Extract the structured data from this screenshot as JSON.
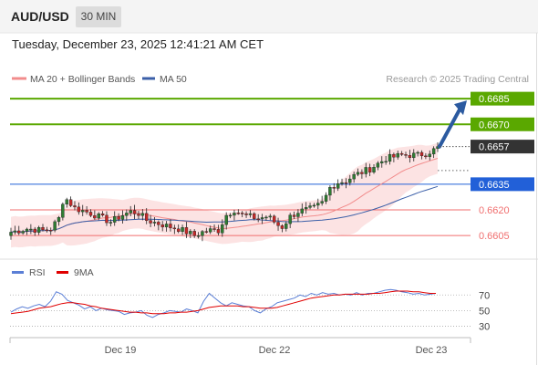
{
  "header": {
    "symbol": "AUD/USD",
    "timeframe_label": "30 MIN",
    "datetime": "Tuesday, December 23, 2025 12:41:21 AM CET"
  },
  "legend": {
    "ma20_label": "MA 20 + Bollinger Bands",
    "ma50_label": "MA 50",
    "source": "Research © 2025 Trading Central"
  },
  "colors": {
    "green_level": "#5aa800",
    "blue_level": "#2260d8",
    "red_level": "#f06e6e",
    "price_tag": "#333333",
    "candle_up": "#2e7d32",
    "candle_down": "#c62828",
    "band_fill": "#fbd9d9",
    "ma20": "#f28c8c",
    "ma50": "#3b5fa8",
    "rsi": "#5b7fd6",
    "rsi_ma": "#e00000",
    "arrow": "#2b5aa0"
  },
  "chart_data": [
    {
      "type": "candlestick",
      "title": "",
      "x_labels": [
        "Dec 19",
        "Dec 22",
        "Dec 23"
      ],
      "current_price": "0.6657",
      "levels": [
        {
          "value": "0.6685",
          "style": "green line, green tag"
        },
        {
          "value": "0.6670",
          "style": "green line, green tag"
        },
        {
          "value": "0.6635",
          "style": "blue line, blue tag"
        },
        {
          "value": "0.6620",
          "style": "red line, red text"
        },
        {
          "value": "0.6605",
          "style": "red line, red text"
        }
      ],
      "ylim": [
        0.6596,
        0.6692
      ],
      "series": [
        {
          "name": "MA 20 + Bollinger Bands"
        },
        {
          "name": "MA 50"
        }
      ],
      "close_path": [
        [
          0,
          0.6607
        ],
        [
          4,
          0.6609
        ],
        [
          8,
          0.6608
        ],
        [
          10,
          0.6609
        ],
        [
          12,
          0.6615
        ],
        [
          13,
          0.6625
        ],
        [
          14,
          0.6626
        ],
        [
          16,
          0.6621
        ],
        [
          20,
          0.6618
        ],
        [
          22,
          0.6616
        ],
        [
          25,
          0.6613
        ],
        [
          28,
          0.6617
        ],
        [
          30,
          0.6619
        ],
        [
          32,
          0.6618
        ],
        [
          34,
          0.6614
        ],
        [
          37,
          0.6612
        ],
        [
          40,
          0.661
        ],
        [
          42,
          0.6609
        ],
        [
          44,
          0.6607
        ],
        [
          46,
          0.6605
        ],
        [
          48,
          0.6607
        ],
        [
          50,
          0.6608
        ],
        [
          52,
          0.6608
        ],
        [
          54,
          0.6617
        ],
        [
          56,
          0.662
        ],
        [
          58,
          0.6617
        ],
        [
          60,
          0.6616
        ],
        [
          62,
          0.6615
        ],
        [
          64,
          0.6616
        ],
        [
          65,
          0.6615
        ],
        [
          66,
          0.6613
        ],
        [
          67,
          0.6611
        ],
        [
          68,
          0.661
        ],
        [
          69,
          0.6613
        ],
        [
          70,
          0.6616
        ],
        [
          72,
          0.6619
        ],
        [
          74,
          0.662
        ],
        [
          76,
          0.6621
        ],
        [
          78,
          0.6624
        ],
        [
          79,
          0.6628
        ],
        [
          80,
          0.6633
        ],
        [
          82,
          0.6636
        ],
        [
          84,
          0.6637
        ],
        [
          86,
          0.664
        ],
        [
          88,
          0.6642
        ],
        [
          90,
          0.6644
        ],
        [
          92,
          0.6647
        ],
        [
          94,
          0.665
        ],
        [
          96,
          0.6651
        ],
        [
          98,
          0.6652
        ],
        [
          100,
          0.6652
        ],
        [
          102,
          0.6652
        ],
        [
          104,
          0.6653
        ],
        [
          106,
          0.6655
        ],
        [
          107,
          0.6656
        ]
      ],
      "projection": {
        "from": "0.6657",
        "to": "0.6685"
      }
    },
    {
      "type": "line",
      "title": "",
      "series": [
        {
          "name": "RSI"
        },
        {
          "name": "9MA"
        }
      ],
      "y_ticks": [
        "70",
        "50",
        "30"
      ],
      "ylim": [
        20,
        82
      ],
      "rsi_values": [
        48,
        52,
        55,
        53,
        56,
        58,
        55,
        62,
        74,
        71,
        63,
        60,
        57,
        52,
        55,
        50,
        53,
        51,
        50,
        49,
        45,
        47,
        48,
        50,
        44,
        41,
        45,
        47,
        50,
        49,
        48,
        52,
        50,
        47,
        62,
        72,
        66,
        60,
        56,
        60,
        58,
        56,
        55,
        50,
        47,
        52,
        55,
        60,
        62,
        64,
        66,
        70,
        68,
        72,
        70,
        73,
        71,
        72,
        70,
        71,
        70,
        73,
        70,
        72,
        72,
        74,
        76,
        77,
        76,
        74,
        73,
        71,
        72,
        70,
        71,
        72
      ],
      "ma_values": [
        46,
        47,
        48,
        49,
        51,
        53,
        54,
        55,
        57,
        59,
        60,
        60,
        59,
        58,
        56,
        55,
        53,
        52,
        51,
        50,
        49,
        48,
        48,
        47,
        47,
        46,
        46,
        46,
        47,
        47,
        48,
        48,
        49,
        50,
        52,
        54,
        55,
        56,
        56,
        56,
        56,
        55,
        55,
        54,
        53,
        53,
        53,
        54,
        56,
        58,
        60,
        62,
        64,
        66,
        67,
        68,
        69,
        70,
        70,
        71,
        71,
        71,
        71,
        71,
        72,
        72,
        73,
        74,
        75,
        75,
        75,
        74,
        74,
        73,
        72,
        72
      ]
    }
  ],
  "rsi_legend": {
    "rsi_label": "RSI",
    "ma_label": "9MA"
  },
  "axis": {
    "x_labels": [
      "Dec 19",
      "Dec 22",
      "Dec 23"
    ]
  }
}
